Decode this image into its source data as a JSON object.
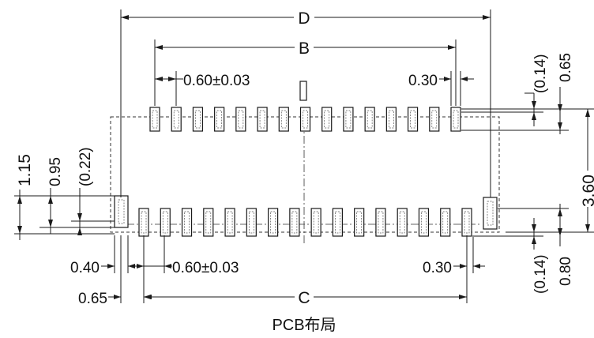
{
  "caption": "PCB布局",
  "labels": {
    "D": "D",
    "B": "B",
    "C": "C",
    "pitch_top": "0.60±0.03",
    "pitch_bottom": "0.60±0.03",
    "w_top": "0.30",
    "w_bottom": "0.30",
    "v014_top": "(0.14)",
    "v065": "0.65",
    "v360": "3.60",
    "v115": "1.15",
    "v095": "0.95",
    "v022": "(0.22)",
    "h040": "0.40",
    "h065": "0.65",
    "v014_bottom": "(0.14)",
    "v080": "0.80"
  },
  "pads": {
    "top_count": 15,
    "bottom_count": 16
  }
}
